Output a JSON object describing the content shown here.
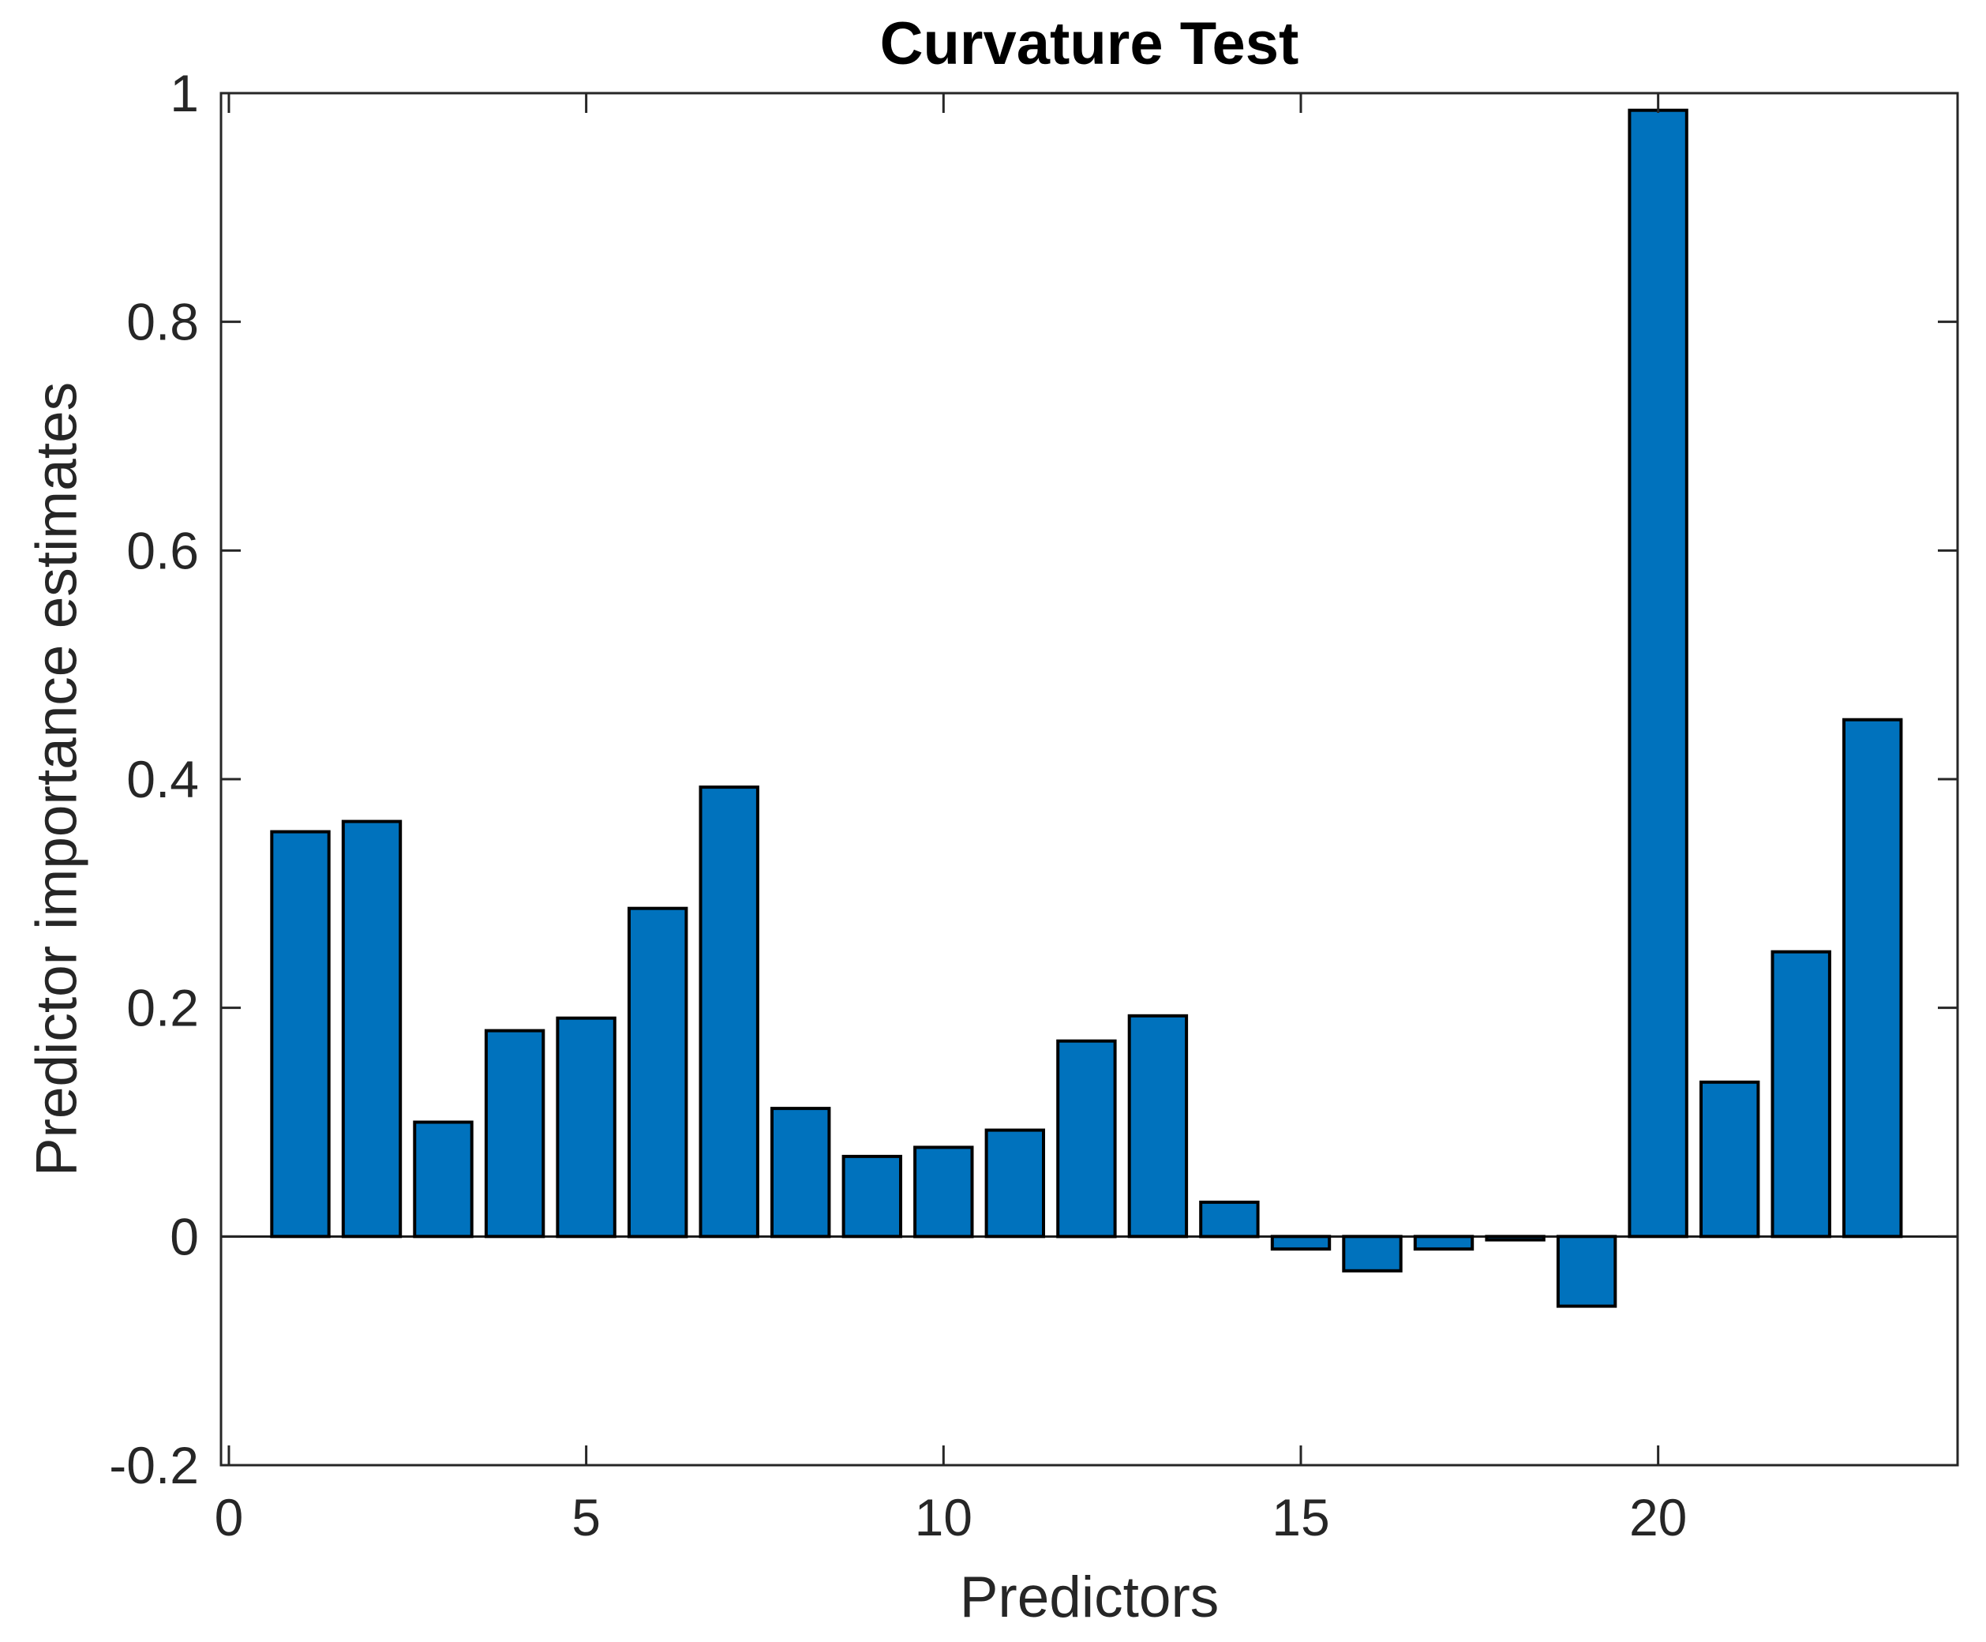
{
  "chart_data": {
    "type": "bar",
    "title": "Curvature Test",
    "xlabel": "Predictors",
    "ylabel": "Predictor importance estimates",
    "x": [
      1,
      2,
      3,
      4,
      5,
      6,
      7,
      8,
      9,
      10,
      11,
      12,
      13,
      14,
      15,
      16,
      17,
      18,
      19,
      20,
      21,
      22,
      23
    ],
    "values": [
      0.354,
      0.363,
      0.1,
      0.18,
      0.191,
      0.287,
      0.393,
      0.112,
      0.07,
      0.078,
      0.093,
      0.171,
      0.193,
      0.03,
      -0.011,
      -0.03,
      -0.011,
      -0.003,
      -0.061,
      0.985,
      0.135,
      0.249,
      0.452
    ],
    "bar_width": 0.8,
    "baseline": 0,
    "xlim": [
      -0.11,
      24.19
    ],
    "ylim": [
      -0.2,
      1
    ],
    "xticks": {
      "values": [
        0,
        5,
        10,
        15,
        20
      ],
      "labels": [
        "0",
        "5",
        "10",
        "15",
        "20"
      ]
    },
    "yticks": {
      "values": [
        -0.2,
        0,
        0.2,
        0.4,
        0.6,
        0.8,
        1
      ],
      "labels": [
        "-0.2",
        "0",
        "0.2",
        "0.4",
        "0.6",
        "0.8",
        "1"
      ]
    },
    "grid": false,
    "legend": null,
    "colors": {
      "bar_fill": "#0072BD",
      "bar_edge": "#000000",
      "axis": "#262626",
      "tick_label": "#262626",
      "title": "#000000",
      "baseline": "#1A1A1A",
      "background": "#FFFFFF"
    }
  }
}
